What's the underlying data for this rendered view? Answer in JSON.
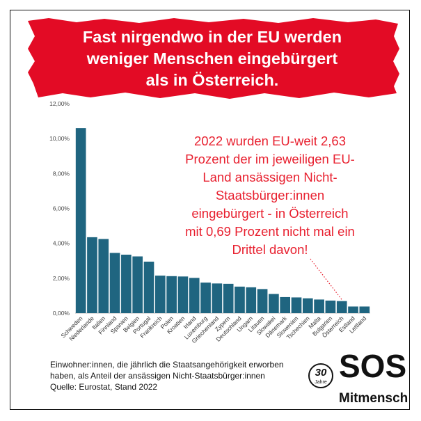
{
  "title_lines": [
    "Fast nirgendwo in der EU werden",
    "weniger Menschen eingebürgert",
    "als in Österreich."
  ],
  "annotation_lines": [
    "2022 wurden EU-weit 2,63",
    "Prozent der im jeweiligen EU-",
    "Land ansässigen Nicht-",
    "Staatsbürger:innen",
    "eingebürgert - in Österreich",
    "mit 0,69 Prozent nicht mal ein",
    "Drittel davon!"
  ],
  "footnote_lines": [
    "Einwohner:innen, die jährlich die Staatsangehörigkeit erworben",
    "haben, als Anteil der ansässigen Nicht-Staatsbürger:innen",
    "Quelle: Eurostat, Stand 2022"
  ],
  "logo": {
    "sos": "SOS",
    "mitmensch": "Mitmensch",
    "badge_number": "30",
    "badge_word": "Jahre"
  },
  "colors": {
    "banner_red": "#e30b25",
    "bar_color": "#1f6580",
    "annotation_red": "#e8202f",
    "text_dark": "#111111"
  },
  "chart_data": {
    "type": "bar",
    "categories": [
      "Schweden",
      "Niederlande",
      "Italien",
      "Finnland",
      "Spanien",
      "Belgien",
      "Portugal",
      "Frankreich",
      "Polen",
      "Kroatien",
      "Irland",
      "Luxemburg",
      "Griechenland",
      "Zypern",
      "Deutschland",
      "Ungarn",
      "Litauen",
      "Slowakei",
      "Dänemark",
      "Slowenien",
      "Tschechien",
      "Malta",
      "Bulgarien",
      "Österreich",
      "Estland",
      "Lettland"
    ],
    "values": [
      10.6,
      4.35,
      4.25,
      3.45,
      3.35,
      3.25,
      2.95,
      2.15,
      2.12,
      2.1,
      2.02,
      1.75,
      1.7,
      1.68,
      1.52,
      1.48,
      1.38,
      1.1,
      0.92,
      0.9,
      0.85,
      0.78,
      0.72,
      0.69,
      0.38,
      0.38
    ],
    "ylim": [
      0,
      12
    ],
    "yticks": [
      "0,00%",
      "2,00%",
      "4,00%",
      "6,00%",
      "8,00%",
      "10,00%",
      "12,00%"
    ],
    "grid": false,
    "highlight_category": "Österreich"
  }
}
